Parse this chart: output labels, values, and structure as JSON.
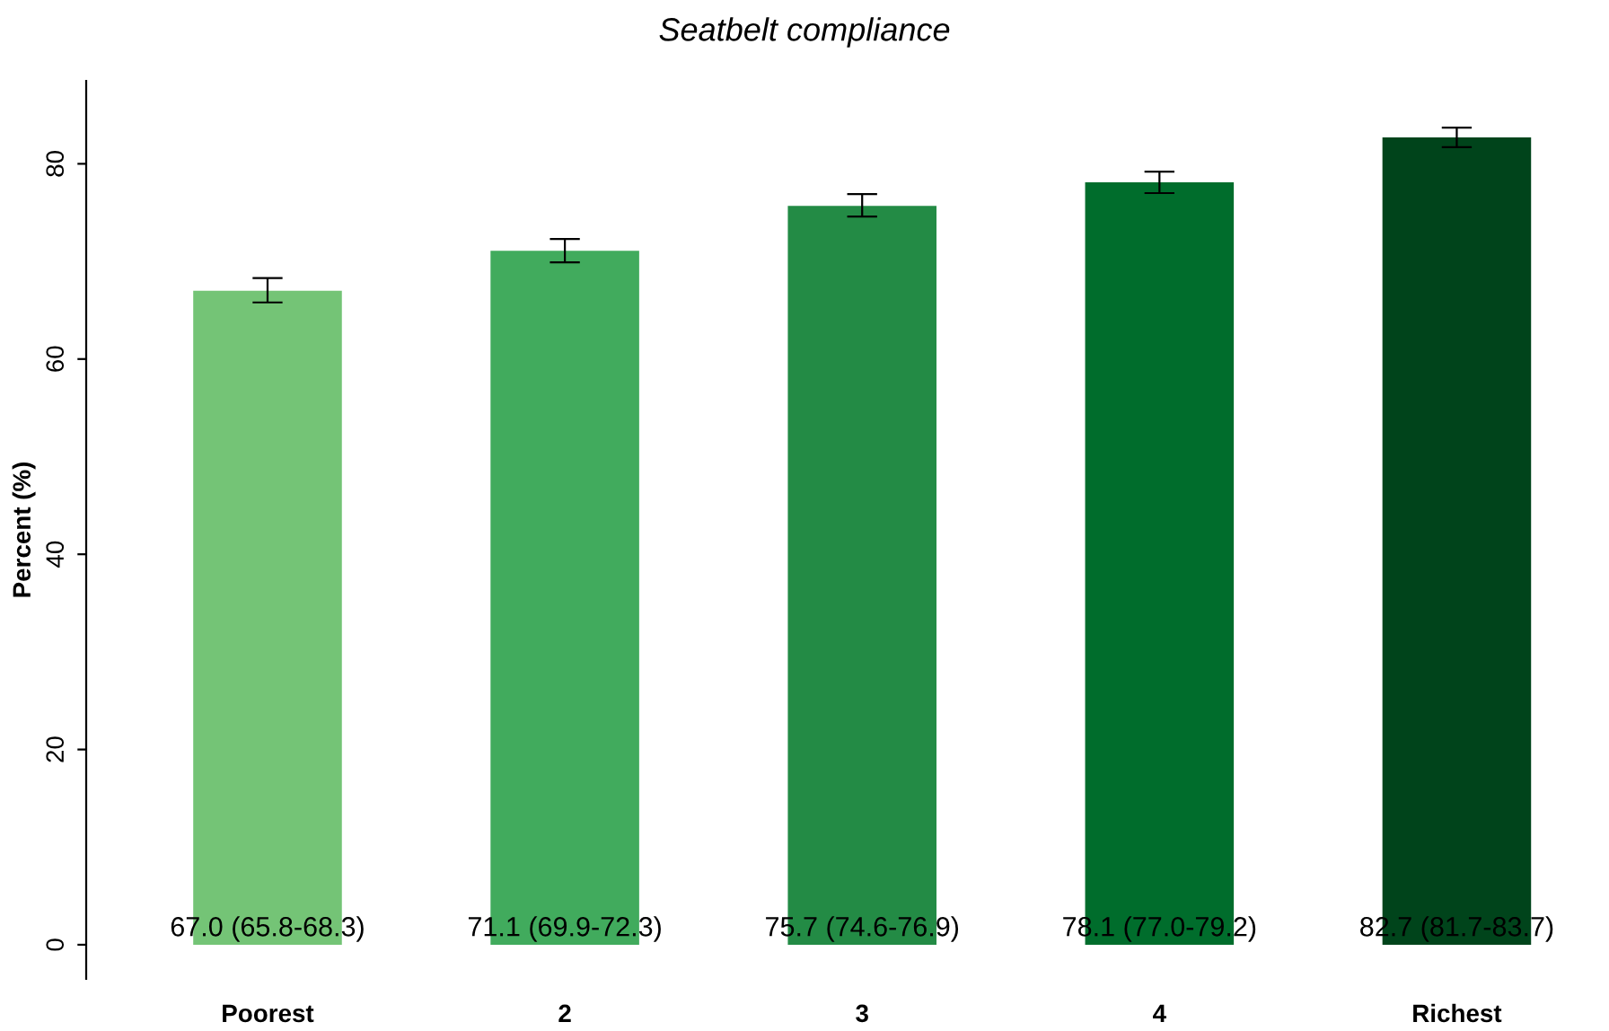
{
  "chart_data": {
    "type": "bar",
    "title": "Seatbelt compliance",
    "ylabel": "Percent (%)",
    "categories": [
      "Poorest",
      "2",
      "3",
      "4",
      "Richest"
    ],
    "values": [
      67.0,
      71.1,
      75.7,
      78.1,
      82.7
    ],
    "colors": [
      "#74c476",
      "#41ab5d",
      "#238b45",
      "#006d2c",
      "#00441b"
    ],
    "errors": [
      [
        65.8,
        68.3
      ],
      [
        69.9,
        72.3
      ],
      [
        74.6,
        76.9
      ],
      [
        77.0,
        79.2
      ],
      [
        81.7,
        83.7
      ]
    ],
    "value_labels": [
      "67.0 (65.8-68.3)",
      "71.1 (69.9-72.3)",
      "75.7 (74.6-76.9)",
      "78.1 (77.0-79.2)",
      "82.7 (81.7-83.7)"
    ],
    "ylim": [
      -3.5,
      88.5
    ],
    "yticks": [
      0,
      20,
      40,
      60,
      80
    ],
    "grid": false,
    "legend": false
  }
}
